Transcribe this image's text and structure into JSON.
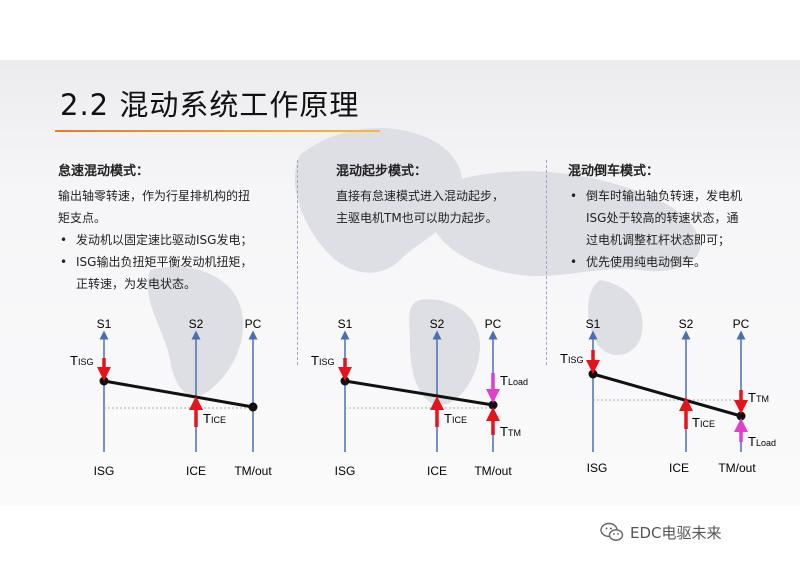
{
  "title": "2.2 混动系统工作原理",
  "columns": [
    {
      "heading": "怠速混动模式：",
      "lines": [
        "输出轴零转速，作为行星排机构的扭",
        "矩支点。"
      ],
      "bullets": [
        [
          "发动机以固定速比驱动ISG发电；"
        ],
        [
          "ISG输出负扭矩平衡发动机扭矩，",
          "正转速，为发电状态。"
        ]
      ]
    },
    {
      "heading": "混动起步模式：",
      "lines": [
        "直接有怠速模式进入混动起步，",
        "主驱电机TM也可以助力起步。"
      ],
      "bullets": []
    },
    {
      "heading": "混动倒车模式：",
      "lines": [],
      "bullets": [
        [
          "倒车时输出轴负转速，发电机",
          "ISG处于较高的转速状态，通",
          "过电机调整杠杆状态即可；"
        ],
        [
          "优先使用纯电动倒车。"
        ]
      ]
    }
  ],
  "diagrams": [
    {
      "axes_top": [
        "S1",
        "S2",
        "PC"
      ],
      "axes_bottom": [
        "ISG",
        "ICE",
        "TM/out"
      ],
      "torques": [
        {
          "main": "T",
          "sub": "ISG"
        },
        {
          "main": "T",
          "sub": "ICE"
        }
      ]
    },
    {
      "axes_top": [
        "S1",
        "S2",
        "PC"
      ],
      "axes_bottom": [
        "ISG",
        "ICE",
        "TM/out"
      ],
      "torques": [
        {
          "main": "T",
          "sub": "ISG"
        },
        {
          "main": "T",
          "sub": "ICE"
        },
        {
          "main": "T",
          "sub": "Load"
        },
        {
          "main": "T",
          "sub": "TM"
        }
      ]
    },
    {
      "axes_top": [
        "S1",
        "S2",
        "PC"
      ],
      "axes_bottom": [
        "ISG",
        "ICE",
        "TM/out"
      ],
      "torques": [
        {
          "main": "T",
          "sub": "ISG"
        },
        {
          "main": "T",
          "sub": "ICE"
        },
        {
          "main": "T",
          "sub": "TM"
        },
        {
          "main": "T",
          "sub": "Load"
        }
      ]
    }
  ],
  "colors": {
    "axis": "#4a6fb0",
    "lever": "#111111",
    "engine_torque": "#e5131b",
    "load_torque": "#e040c8",
    "accent": "#e67e22"
  },
  "watermark": {
    "icon": "wechat-icon",
    "text": "EDC电驱未来"
  }
}
